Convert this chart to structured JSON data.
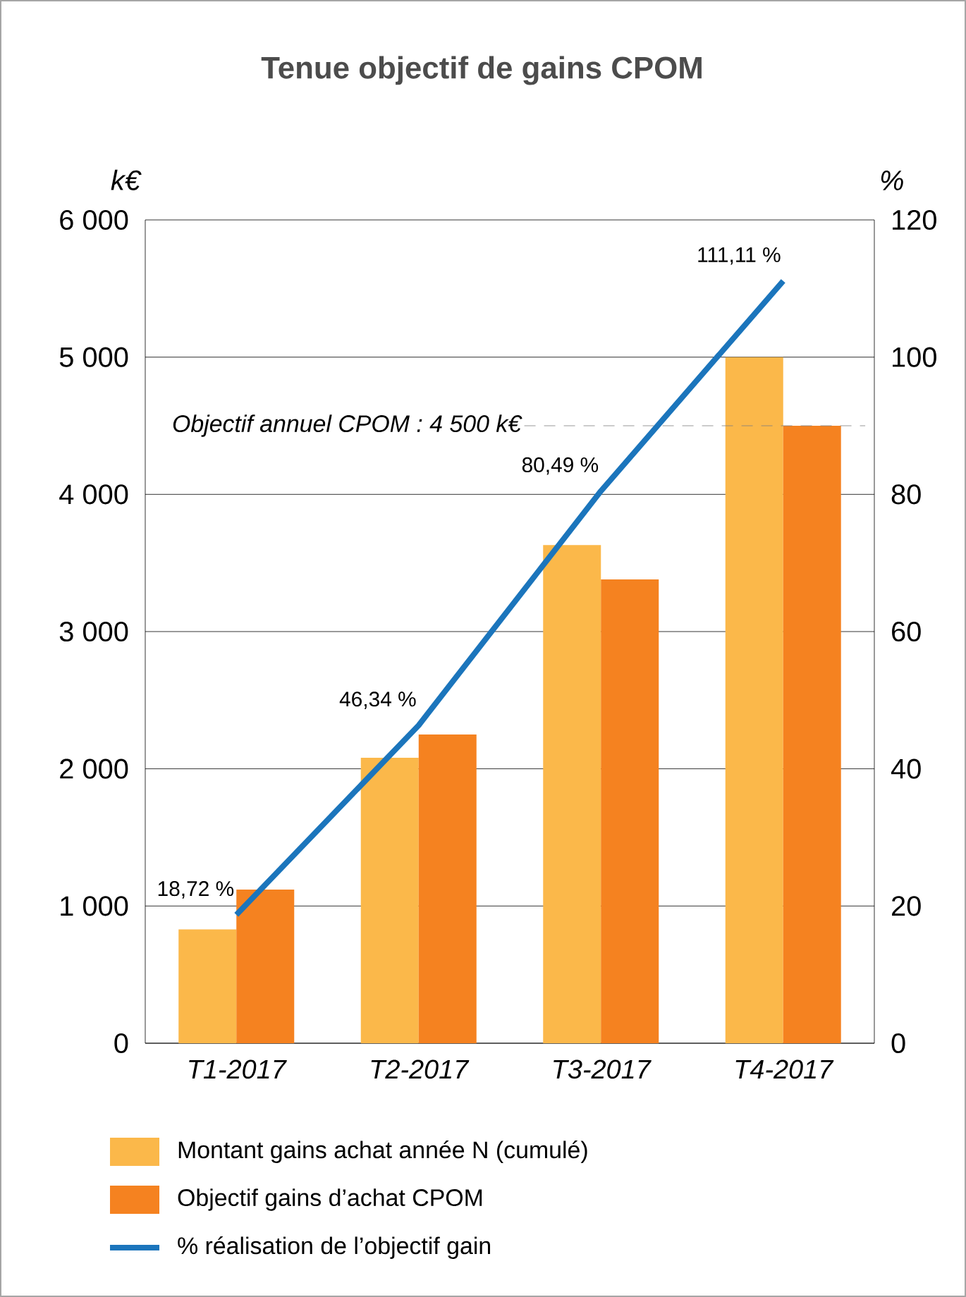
{
  "chart_data": {
    "type": "bar",
    "title": "Tenue objectif de gains CPOM",
    "ylabel": "k€",
    "y2label": "%",
    "categories": [
      "T1-2017",
      "T2-2017",
      "T3-2017",
      "T4-2017"
    ],
    "series": [
      {
        "name": "Montant gains achat année N (cumulé)",
        "color": "#fbb84a",
        "values": [
          830,
          2080,
          3630,
          5000
        ]
      },
      {
        "name": "Objectif gains d’achat CPOM",
        "color": "#f58220",
        "values": [
          1120,
          2250,
          3380,
          4500
        ]
      },
      {
        "name": "% réalisation de l’objectif gain",
        "type": "line",
        "axis": "y2",
        "color": "#1b75bc",
        "values": [
          18.72,
          46.34,
          80.49,
          111.11
        ],
        "value_labels": [
          "18,72 %",
          "46,34 %",
          "80,49 %",
          "111,11 %"
        ]
      }
    ],
    "ylim": [
      0,
      6000
    ],
    "yticks": [
      {
        "value": 0,
        "label": "0"
      },
      {
        "value": 1000,
        "label": "1 000"
      },
      {
        "value": 2000,
        "label": "2 000"
      },
      {
        "value": 3000,
        "label": "3 000"
      },
      {
        "value": 4000,
        "label": "4 000"
      },
      {
        "value": 5000,
        "label": "5 000"
      },
      {
        "value": 6000,
        "label": "6 000"
      }
    ],
    "y2lim": [
      0,
      120
    ],
    "y2ticks": [
      0,
      20,
      40,
      60,
      80,
      100,
      120
    ],
    "ref_lines": [
      {
        "axis": "y",
        "value": 4500,
        "label": "Objectif annuel CPOM : 4 500 k€",
        "line_style": "dashed",
        "color": "#808080"
      }
    ],
    "grid": "y",
    "legend": "bottom",
    "marker": "none",
    "line_style": "solid"
  }
}
